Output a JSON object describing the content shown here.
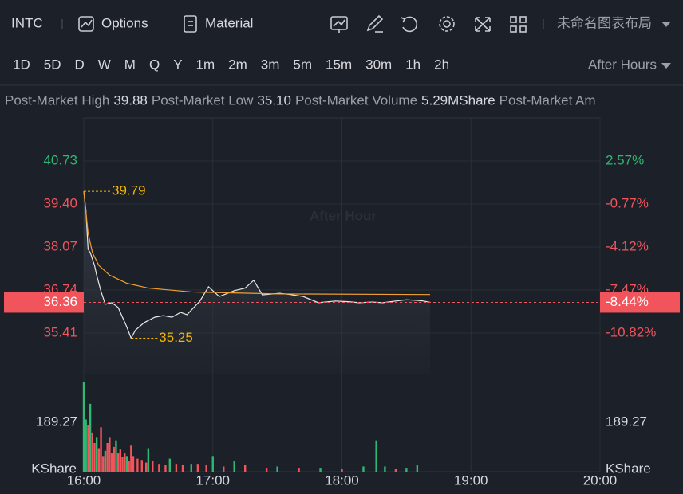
{
  "toolbar": {
    "symbol": "INTC",
    "buttons": [
      "Options",
      "Material"
    ],
    "layout": "未命名图表布局"
  },
  "intervals": {
    "items": [
      "1D",
      "5D",
      "D",
      "W",
      "M",
      "Q",
      "Y",
      "1m",
      "2m",
      "3m",
      "5m",
      "15m",
      "30m",
      "1h",
      "2h"
    ],
    "active": 0,
    "session": "After Hours"
  },
  "stats": [
    {
      "label": "Post-Market High",
      "value": "39.88"
    },
    {
      "label": "Post-Market Low",
      "value": "35.10"
    },
    {
      "label": "Post-Market Volume",
      "value": "5.29MShare"
    },
    {
      "label": "Post-Market Am"
    }
  ],
  "chart_data": {
    "type": "line",
    "watermark": "After Hour",
    "up_color": "#2eb872",
    "down_color": "#f2545b",
    "xlim": [
      960,
      1200
    ],
    "xticks": [
      {
        "value": 960,
        "label": "16:00"
      },
      {
        "value": 1020,
        "label": "17:00"
      },
      {
        "value": 1080,
        "label": "18:00"
      },
      {
        "value": 1140,
        "label": "19:00"
      },
      {
        "value": 1200,
        "label": "20:00"
      }
    ],
    "ylim": [
      34.13,
      42.06
    ],
    "yticks": [
      40.73,
      {
        "value": 39.4,
        "label": "39.40"
      },
      38.07,
      36.74,
      35.41
    ],
    "y2lim": [
      -14.05,
      5.92
    ],
    "y2ticks": [
      {
        "value": 2.57,
        "label": "2.57%"
      },
      {
        "value": -0.77,
        "label": "-0.77%"
      },
      {
        "value": -4.12,
        "label": "-4.12%"
      },
      {
        "value": -7.47,
        "label": "-7.47%"
      },
      {
        "value": -10.82,
        "label": "-10.82%"
      }
    ],
    "grid": true,
    "series": [
      {
        "color": "#e8e8e8",
        "x": [
          960,
          961,
          962,
          963,
          965,
          966,
          968,
          970,
          973,
          976,
          978,
          980,
          982,
          984,
          988,
          993,
          997,
          1001,
          1005,
          1008,
          1014,
          1018,
          1023,
          1030,
          1035,
          1039,
          1043,
          1051,
          1056,
          1062,
          1069,
          1077,
          1083,
          1088,
          1094,
          1099,
          1105,
          1110,
          1115,
          1118,
          1121
        ],
        "values": [
          39.79,
          39.2,
          38.0,
          37.9,
          37.5,
          37.2,
          36.7,
          36.3,
          36.35,
          36.2,
          35.9,
          35.6,
          35.25,
          35.5,
          35.73,
          35.9,
          35.95,
          35.9,
          36.05,
          35.98,
          36.4,
          36.84,
          36.54,
          36.72,
          36.8,
          37.04,
          36.59,
          36.64,
          36.6,
          36.54,
          36.35,
          36.4,
          36.38,
          36.35,
          36.37,
          36.35,
          36.4,
          36.44,
          36.42,
          36.4,
          36.36
        ]
      },
      {
        "color": "#f0a030",
        "x": [
          960,
          962,
          964,
          967,
          972,
          980,
          990,
          1010,
          1050,
          1121
        ],
        "values": [
          39.79,
          38.5,
          37.9,
          37.5,
          37.2,
          36.95,
          36.8,
          36.68,
          36.62,
          36.6
        ]
      }
    ],
    "last_value": 36.36,
    "last_change": -8.44,
    "last_change_label": "-8.44%",
    "annotations": [
      {
        "x": 960,
        "value": 39.79
      },
      {
        "x": 982,
        "value": 35.25
      }
    ],
    "volume": {
      "unit": "KShare",
      "ylim": [
        0,
        348
      ],
      "yticks": [
        189.27
      ],
      "series": [
        {
          "color": "#2eb872",
          "x": [
            960,
            961,
            963,
            966,
            970,
            975,
            980,
            990,
            1000,
            1010,
            1020,
            1030,
            1050,
            1070,
            1090,
            1096,
            1100,
            1110,
            1115
          ],
          "values": [
            342,
            200,
            260,
            130,
            80,
            120,
            60,
            90,
            50,
            30,
            60,
            40,
            20,
            15,
            20,
            120,
            20,
            15,
            25
          ]
        },
        {
          "color": "#f2545b",
          "x": [
            962,
            964,
            965,
            967,
            968,
            969,
            971,
            972,
            973,
            974,
            976,
            977,
            978,
            979,
            981,
            982,
            983,
            985,
            987,
            989,
            992,
            995,
            998,
            1003,
            1006,
            1013,
            1017,
            1025,
            1035,
            1045,
            1060,
            1080,
            1105
          ],
          "values": [
            180,
            150,
            110,
            90,
            170,
            60,
            110,
            130,
            70,
            95,
            70,
            85,
            55,
            70,
            40,
            100,
            60,
            50,
            45,
            35,
            40,
            30,
            25,
            30,
            25,
            30,
            25,
            20,
            25,
            15,
            15,
            10,
            10
          ]
        }
      ]
    }
  }
}
